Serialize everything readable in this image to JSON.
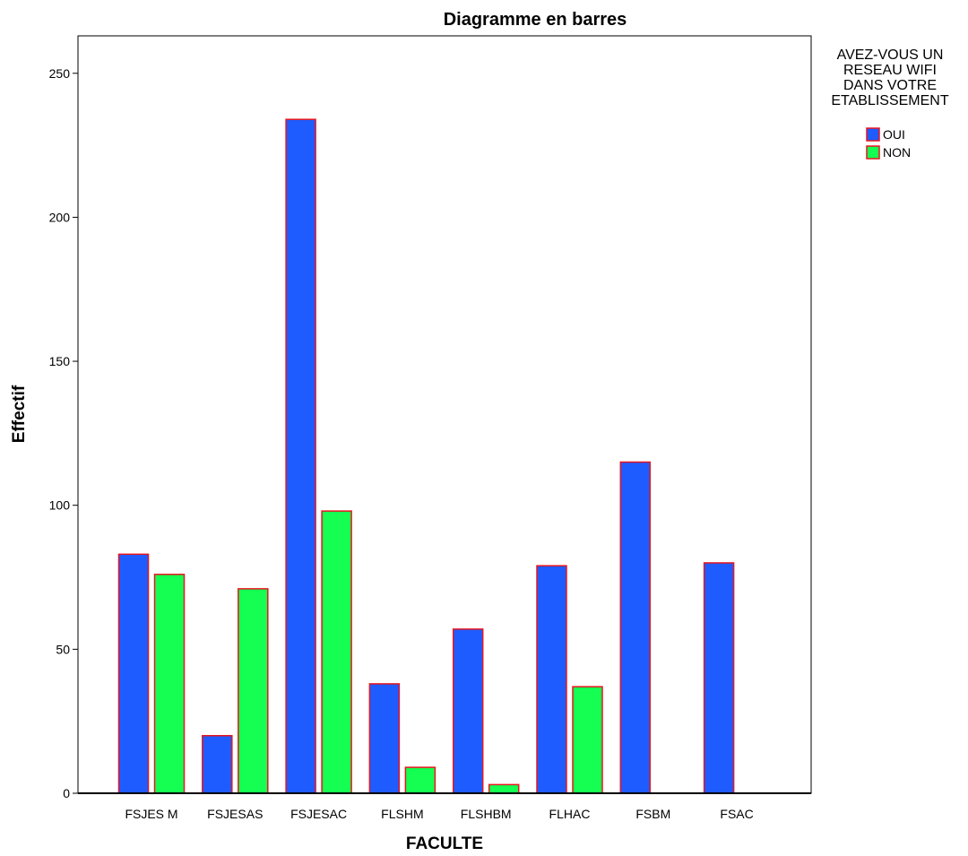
{
  "chart_data": {
    "type": "bar",
    "title": "Diagramme en barres",
    "xlabel": "FACULTE",
    "ylabel": "Effectif",
    "categories": [
      "FSJES M",
      "FSJESAS",
      "FSJESAC",
      "FLSHM",
      "FLSHBM",
      "FLHAC",
      "FSBM",
      "FSAC"
    ],
    "series": [
      {
        "name": "OUI",
        "color": "#1f5cff",
        "values": [
          83,
          20,
          234,
          38,
          57,
          79,
          115,
          80
        ]
      },
      {
        "name": "NON",
        "color": "#14ff52",
        "values": [
          76,
          71,
          98,
          9,
          3,
          37,
          0,
          0
        ]
      }
    ],
    "bar_edge_color": "#e8141e",
    "ylim": [
      0,
      263
    ],
    "yticks": [
      0,
      50,
      100,
      150,
      200,
      250
    ],
    "grid": false,
    "legend": {
      "title_lines": [
        "AVEZ-VOUS UN",
        "RESEAU WIFI",
        "DANS VOTRE",
        "ETABLISSEMENT"
      ],
      "placement": "right"
    }
  }
}
